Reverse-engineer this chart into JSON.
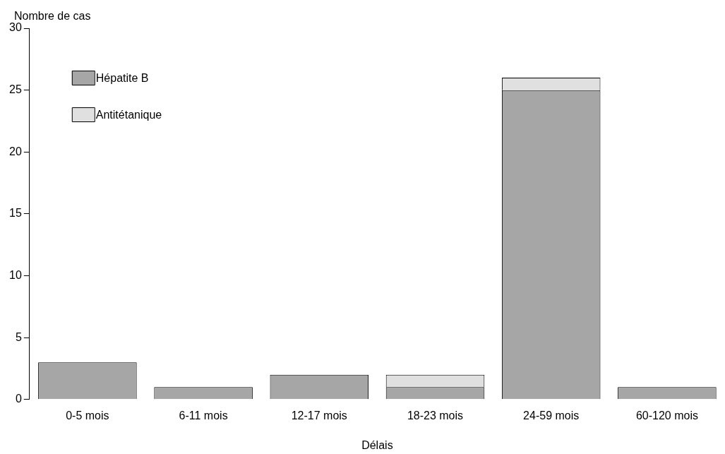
{
  "chart_data": {
    "type": "bar",
    "xlabel": "Délais",
    "ylabel": "Nombre de cas",
    "categories": [
      "0-5 mois",
      "6-11 mois",
      "12-17 mois",
      "18-23 mois",
      "24-59 mois",
      "60-120 mois"
    ],
    "series": [
      {
        "name": "Hépatite B",
        "color": "#a6a6a6",
        "values": [
          3,
          1,
          2,
          1,
          25,
          1
        ]
      },
      {
        "name": "Antitétanique",
        "color": "#e0e0e0",
        "values": [
          0,
          0,
          0,
          1,
          1,
          0
        ]
      }
    ],
    "stacked": true,
    "ylim": [
      0,
      30
    ],
    "yticks": [
      0,
      5,
      10,
      15,
      20,
      25,
      30
    ],
    "grid": false,
    "legend": "top left"
  }
}
